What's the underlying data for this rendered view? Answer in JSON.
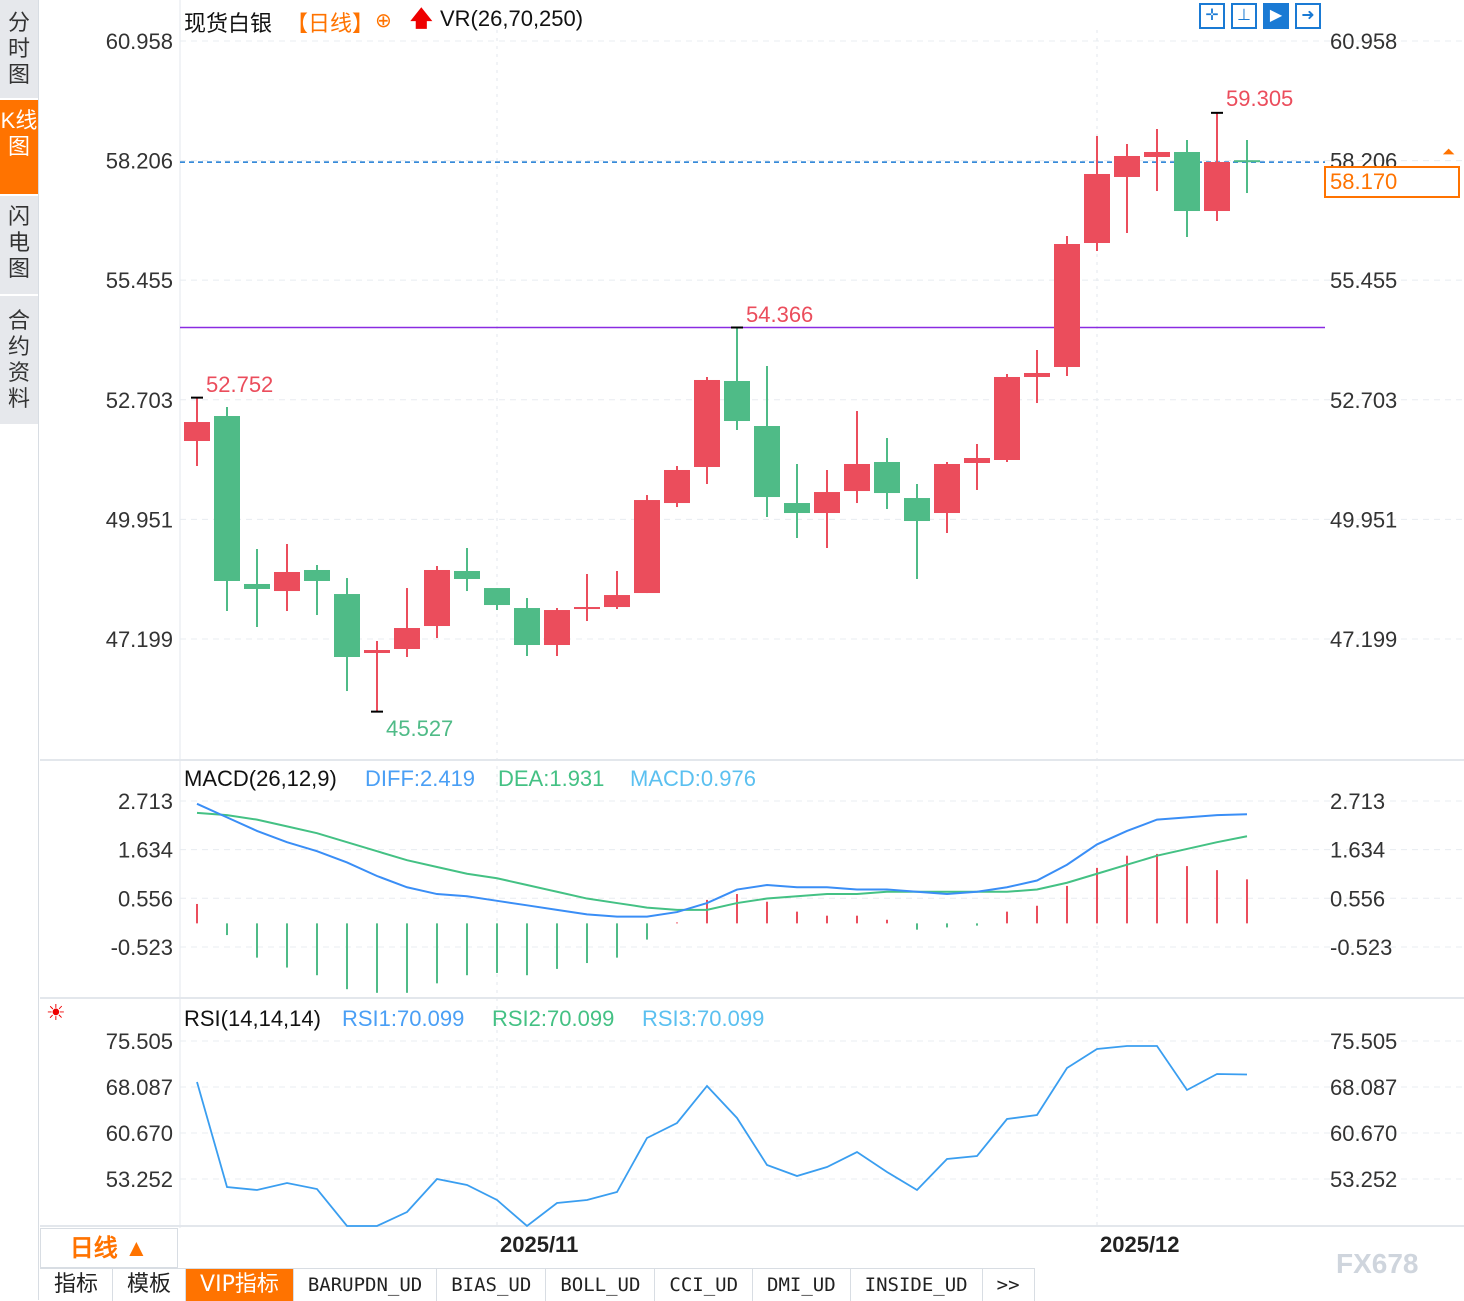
{
  "sidebar": {
    "tabs": [
      {
        "label": "分时图"
      },
      {
        "label": "K线图",
        "active": true
      },
      {
        "label": "闪电图"
      },
      {
        "label": "合约资料"
      }
    ]
  },
  "header": {
    "symbol": "现货白银",
    "period_tag": "【日线】",
    "indicator": "VR(26,70,250)",
    "crosshair_icon": "target-icon",
    "arrow_icon": "up-arrow-icon"
  },
  "toolbar": {
    "icons": [
      "crosshair-icon",
      "range-icon",
      "play-icon",
      "exit-icon"
    ]
  },
  "colors": {
    "up": "#eb4d5c",
    "down": "#4fbb87",
    "diff": "#3a8ef6",
    "dea": "#44c184",
    "rsi": "#3a9ef0",
    "accent": "#ff7300",
    "resistance": "#8a2be2"
  },
  "chart_data": [
    {
      "type": "candlestick",
      "yticks": [
        "60.958",
        "58.206",
        "55.455",
        "52.703",
        "49.951",
        "47.199"
      ],
      "ylim": [
        44.2,
        61.4
      ],
      "annotations": {
        "high_label": "59.305",
        "mid_label": "54.366",
        "start_label": "52.752",
        "low_label": "45.527"
      },
      "last_price": "58.170",
      "resistance": 54.366,
      "xticks": [
        "2025/11",
        "2025/12"
      ],
      "ohlc": [
        [
          51.754,
          52.752,
          51.179,
          52.191
        ],
        [
          52.329,
          52.536,
          47.842,
          48.533
        ],
        [
          48.464,
          49.269,
          47.474,
          48.349
        ],
        [
          48.302,
          49.384,
          47.842,
          48.74
        ],
        [
          48.786,
          48.901,
          47.75,
          48.533
        ],
        [
          48.233,
          48.601,
          46.001,
          46.784
        ],
        [
          46.876,
          47.152,
          45.527,
          46.945
        ],
        [
          46.968,
          48.371,
          46.784,
          47.451
        ],
        [
          47.497,
          48.878,
          47.221,
          48.786
        ],
        [
          48.763,
          49.292,
          48.302,
          48.579
        ],
        [
          48.371,
          48.371,
          47.865,
          47.98
        ],
        [
          47.911,
          48.141,
          46.807,
          47.06
        ],
        [
          47.06,
          47.911,
          46.807,
          47.865
        ],
        [
          47.888,
          48.694,
          47.612,
          47.934
        ],
        [
          47.934,
          48.763,
          47.888,
          48.21
        ],
        [
          48.256,
          50.511,
          48.256,
          50.396
        ],
        [
          50.327,
          51.179,
          50.235,
          51.087
        ],
        [
          51.156,
          53.227,
          50.765,
          53.158
        ],
        [
          53.135,
          54.366,
          52.007,
          52.214
        ],
        [
          52.099,
          53.48,
          50.005,
          50.465
        ],
        [
          50.327,
          51.225,
          49.522,
          50.097
        ],
        [
          50.097,
          51.087,
          49.292,
          50.58
        ],
        [
          50.603,
          52.444,
          50.327,
          51.225
        ],
        [
          51.271,
          51.823,
          50.189,
          50.557
        ],
        [
          50.442,
          50.765,
          48.579,
          49.913
        ],
        [
          50.097,
          51.271,
          49.637,
          51.225
        ],
        [
          51.248,
          51.685,
          50.627,
          51.363
        ],
        [
          51.317,
          53.296,
          51.271,
          53.227
        ],
        [
          53.227,
          53.848,
          52.628,
          53.319
        ],
        [
          53.457,
          56.471,
          53.25,
          56.287
        ],
        [
          56.31,
          58.772,
          56.126,
          57.898
        ],
        [
          57.829,
          58.588,
          56.54,
          58.312
        ],
        [
          58.289,
          58.933,
          57.506,
          58.404
        ],
        [
          58.404,
          58.68,
          56.448,
          57.046
        ],
        [
          57.046,
          59.305,
          56.816,
          58.174
        ],
        [
          58.215,
          58.68,
          57.46,
          58.17
        ]
      ]
    },
    {
      "type": "macd",
      "title": "MACD(26,12,9)",
      "diff_label": "DIFF:2.419",
      "dea_label": "DEA:1.931",
      "macd_label": "MACD:0.976",
      "yticks": [
        "2.713",
        "1.634",
        "0.556",
        "-0.523"
      ],
      "diff": [
        2.65,
        2.35,
        2.05,
        1.8,
        1.6,
        1.35,
        1.05,
        0.8,
        0.65,
        0.6,
        0.5,
        0.4,
        0.3,
        0.2,
        0.15,
        0.15,
        0.25,
        0.45,
        0.75,
        0.85,
        0.8,
        0.8,
        0.75,
        0.75,
        0.7,
        0.65,
        0.7,
        0.8,
        0.95,
        1.3,
        1.75,
        2.05,
        2.3,
        2.35,
        2.4,
        2.419
      ],
      "dea": [
        2.45,
        2.4,
        2.3,
        2.15,
        2.0,
        1.8,
        1.6,
        1.4,
        1.25,
        1.1,
        1.0,
        0.85,
        0.7,
        0.55,
        0.45,
        0.35,
        0.3,
        0.3,
        0.45,
        0.55,
        0.6,
        0.65,
        0.65,
        0.7,
        0.7,
        0.7,
        0.7,
        0.7,
        0.75,
        0.9,
        1.1,
        1.3,
        1.5,
        1.65,
        1.8,
        1.931
      ],
      "macd": [
        0.43,
        -0.26,
        -0.76,
        -0.98,
        -1.15,
        -1.46,
        -1.54,
        -1.54,
        -1.33,
        -1.15,
        -1.1,
        -1.15,
        -1.01,
        -0.88,
        -0.76,
        -0.36,
        0.02,
        0.52,
        0.65,
        0.48,
        0.26,
        0.17,
        0.17,
        0.08,
        -0.14,
        -0.09,
        -0.05,
        0.26,
        0.39,
        0.83,
        1.23,
        1.5,
        1.54,
        1.27,
        1.18,
        0.976
      ]
    },
    {
      "type": "line",
      "title": "RSI(14,14,14)",
      "rsi1_label": "RSI1:70.099",
      "rsi2_label": "RSI2:70.099",
      "rsi3_label": "RSI3:70.099",
      "yticks": [
        "75.505",
        "68.087",
        "60.670",
        "53.252"
      ],
      "rsi": [
        68.89,
        51.96,
        51.47,
        52.6,
        51.63,
        45.67,
        45.67,
        47.92,
        53.25,
        52.28,
        49.86,
        45.67,
        49.38,
        49.86,
        51.15,
        59.86,
        62.28,
        68.25,
        63.09,
        55.51,
        53.73,
        55.18,
        57.6,
        54.37,
        51.47,
        56.47,
        56.95,
        62.92,
        63.57,
        71.15,
        74.22,
        74.7,
        74.7,
        67.6,
        70.18,
        70.099
      ]
    }
  ],
  "period_selector": {
    "label": "日线 ▲"
  },
  "bottom_tabs": [
    {
      "label": "指标"
    },
    {
      "label": "模板"
    },
    {
      "label": "VIP指标",
      "active": true
    },
    {
      "label": "BARUPDN_UD"
    },
    {
      "label": "BIAS_UD"
    },
    {
      "label": "BOLL_UD"
    },
    {
      "label": "CCI_UD"
    },
    {
      "label": "DMI_UD"
    },
    {
      "label": "INSIDE_UD"
    },
    {
      "label": ">>"
    }
  ],
  "watermark": "FX678"
}
